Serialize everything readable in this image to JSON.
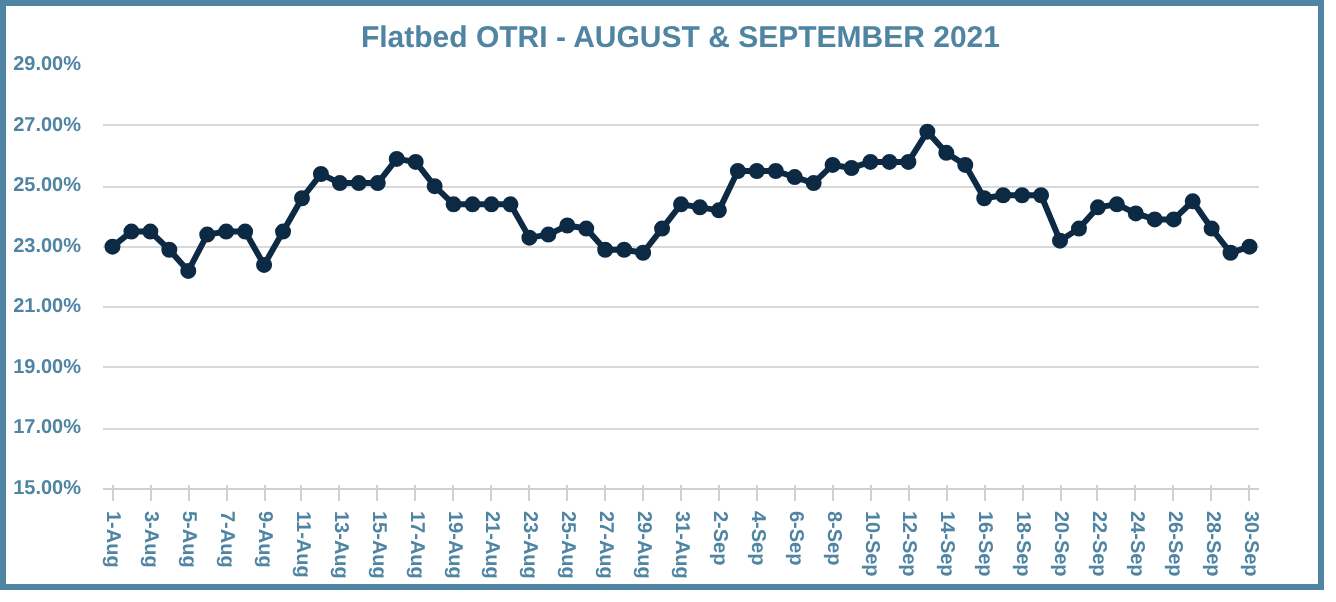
{
  "chart_data": {
    "type": "line",
    "title": "Flatbed OTRI - AUGUST & SEPTEMBER 2021",
    "categories": [
      "1-Aug",
      null,
      "3-Aug",
      null,
      "5-Aug",
      null,
      "7-Aug",
      null,
      "9-Aug",
      null,
      "11-Aug",
      null,
      "13-Aug",
      null,
      "15-Aug",
      null,
      "17-Aug",
      null,
      "19-Aug",
      null,
      "21-Aug",
      null,
      "23-Aug",
      null,
      "25-Aug",
      null,
      "27-Aug",
      null,
      "29-Aug",
      null,
      "31-Aug",
      null,
      "2-Sep",
      null,
      "4-Sep",
      null,
      "6-Sep",
      null,
      "8-Sep",
      null,
      "10-Sep",
      null,
      "12-Sep",
      null,
      "14-Sep",
      null,
      "16-Sep",
      null,
      "18-Sep",
      null,
      "20-Sep",
      null,
      "22-Sep",
      null,
      "24-Sep",
      null,
      "26-Sep",
      null,
      "28-Sep",
      null,
      "30-Sep"
    ],
    "series": [
      {
        "color": "#0d2a45",
        "values": [
          23.0,
          23.5,
          23.5,
          22.9,
          22.2,
          23.4,
          23.5,
          23.5,
          22.4,
          23.5,
          24.6,
          25.4,
          25.1,
          25.1,
          25.1,
          25.9,
          25.8,
          25.0,
          24.4,
          24.4,
          24.4,
          24.4,
          23.3,
          23.4,
          23.7,
          23.6,
          22.9,
          22.9,
          22.8,
          23.6,
          24.4,
          24.3,
          24.2,
          25.5,
          25.5,
          25.5,
          25.3,
          25.1,
          25.7,
          25.6,
          25.8,
          25.8,
          25.8,
          26.8,
          26.1,
          25.7,
          24.6,
          24.7,
          24.7,
          24.7,
          23.2,
          23.6,
          24.3,
          24.4,
          24.1,
          23.9,
          23.9,
          24.5,
          23.6,
          22.8,
          23.0
        ]
      }
    ],
    "ylim": [
      15,
      29
    ],
    "yticks": [
      {
        "value": 15,
        "label": "15.00%"
      },
      {
        "value": 17,
        "label": "17.00%"
      },
      {
        "value": 19,
        "label": "19.00%"
      },
      {
        "value": 21,
        "label": "21.00%"
      },
      {
        "value": 23,
        "label": "23.00%"
      },
      {
        "value": 25,
        "label": "25.00%"
      },
      {
        "value": 27,
        "label": "27.00%"
      },
      {
        "value": 29,
        "label": "29.00%"
      }
    ],
    "grid": "y",
    "marker": "circle",
    "line_style": "solid"
  }
}
